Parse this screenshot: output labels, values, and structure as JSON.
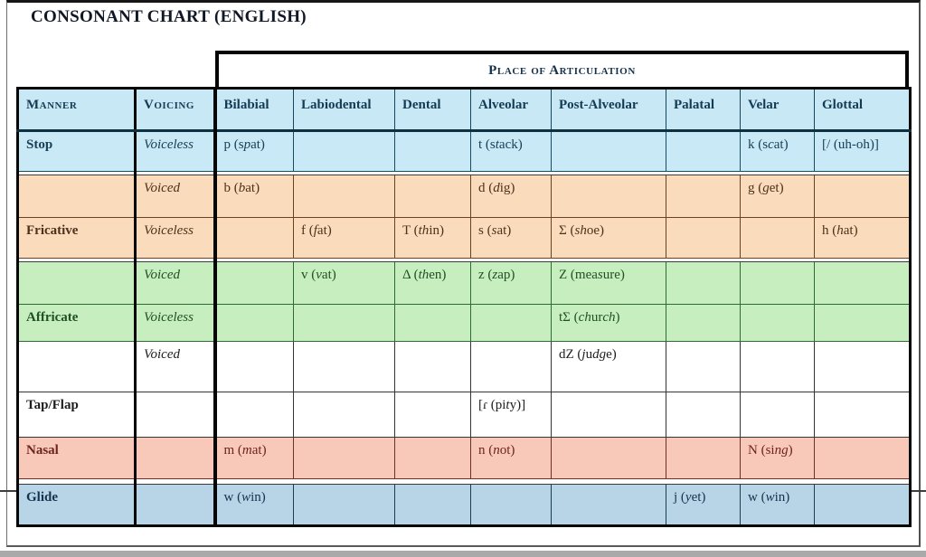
{
  "title": "CONSONANT CHART (ENGLISH)",
  "table": {
    "group_header": "Place of Articulation",
    "columns": [
      {
        "key": "manner",
        "label": "Manner"
      },
      {
        "key": "voicing",
        "label": "Voicing"
      },
      {
        "key": "bilabial",
        "label": "Bilabial"
      },
      {
        "key": "labiodental",
        "label": "Labiodental"
      },
      {
        "key": "dental",
        "label": "Dental"
      },
      {
        "key": "alveolar",
        "label": "Alveolar"
      },
      {
        "key": "postalveolar",
        "label": "Post-Alveolar"
      },
      {
        "key": "palatal",
        "label": "Palatal"
      },
      {
        "key": "velar",
        "label": "Velar"
      },
      {
        "key": "glottal",
        "label": "Glottal"
      }
    ],
    "rows": [
      {
        "manner": "Stop",
        "voicing": "Voiceless",
        "theme": "blue",
        "cells": {
          "bilabial": [
            [
              "p (s"
            ],
            [
              "p",
              1
            ],
            [
              "at)"
            ]
          ],
          "alveolar": [
            [
              "t (s"
            ],
            [
              "t",
              1
            ],
            [
              "ack)"
            ]
          ],
          "velar": [
            [
              "k (s"
            ],
            [
              "c",
              1
            ],
            [
              "at)"
            ]
          ],
          "glottal": [
            [
              "[/ (uh-oh)]"
            ]
          ]
        }
      },
      {
        "manner": "",
        "voicing": "Voiced",
        "theme": "peach",
        "cells": {
          "bilabial": [
            [
              "b ("
            ],
            [
              "b",
              1
            ],
            [
              "at)"
            ]
          ],
          "alveolar": [
            [
              "d ("
            ],
            [
              "d",
              1
            ],
            [
              "ig)"
            ]
          ],
          "velar": [
            [
              "g ("
            ],
            [
              "g",
              1
            ],
            [
              "et)"
            ]
          ]
        }
      },
      {
        "manner": "Fricative",
        "voicing": "Voiceless",
        "theme": "peach",
        "cells": {
          "labiodental": [
            [
              "f ("
            ],
            [
              "f",
              1
            ],
            [
              "at)"
            ]
          ],
          "dental": [
            [
              "T ("
            ],
            [
              "th",
              1
            ],
            [
              "in)"
            ]
          ],
          "alveolar": [
            [
              "s ("
            ],
            [
              "s",
              1
            ],
            [
              "at)"
            ]
          ],
          "postalveolar": [
            [
              "Σ ("
            ],
            [
              "sh",
              1
            ],
            [
              "oe)"
            ]
          ],
          "glottal": [
            [
              "h ("
            ],
            [
              "h",
              1
            ],
            [
              "at)"
            ]
          ]
        }
      },
      {
        "manner": "",
        "voicing": "Voiced",
        "theme": "green",
        "cells": {
          "labiodental": [
            [
              "v ("
            ],
            [
              "v",
              1
            ],
            [
              "at)"
            ]
          ],
          "dental": [
            [
              "Δ ("
            ],
            [
              "th",
              1
            ],
            [
              "en)"
            ]
          ],
          "alveolar": [
            [
              "z ("
            ],
            [
              "z",
              1
            ],
            [
              "ap)"
            ]
          ],
          "postalveolar": [
            [
              "Z (mea"
            ],
            [
              "s",
              1
            ],
            [
              "ure)"
            ]
          ]
        }
      },
      {
        "manner": "Affricate",
        "voicing": "Voiceless",
        "theme": "green",
        "cells": {
          "postalveolar": [
            [
              "tΣ ("
            ],
            [
              "ch",
              1
            ],
            [
              "ur"
            ],
            [
              "ch",
              1
            ],
            [
              ")"
            ]
          ]
        }
      },
      {
        "manner": "",
        "voicing": "Voiced",
        "theme": "plain",
        "cells": {
          "postalveolar": [
            [
              "dZ ("
            ],
            [
              "j",
              1
            ],
            [
              "u"
            ],
            [
              "dg",
              1
            ],
            [
              "e)"
            ]
          ]
        }
      },
      {
        "manner": "Tap/Flap",
        "voicing": "",
        "theme": "plain",
        "cells": {
          "alveolar": [
            [
              "[ɾ (pi"
            ],
            [
              "t",
              1
            ],
            [
              "y)]"
            ]
          ]
        }
      },
      {
        "manner": "Nasal",
        "voicing": "",
        "theme": "salmon",
        "cells": {
          "bilabial": [
            [
              "m ("
            ],
            [
              "m",
              1
            ],
            [
              "at)"
            ]
          ],
          "alveolar": [
            [
              "n ("
            ],
            [
              "n",
              1
            ],
            [
              "ot)"
            ]
          ],
          "velar": [
            [
              "N (si"
            ],
            [
              "ng",
              1
            ],
            [
              ")"
            ]
          ]
        }
      },
      {
        "manner": "Glide",
        "voicing": "",
        "theme": "steel",
        "cells": {
          "bilabial": [
            [
              "w ("
            ],
            [
              "w",
              1
            ],
            [
              "in)"
            ]
          ],
          "palatal": [
            [
              "j ("
            ],
            [
              "y",
              1
            ],
            [
              "et)"
            ]
          ],
          "velar": [
            [
              "w ("
            ],
            [
              "w",
              1
            ],
            [
              "in)"
            ]
          ]
        }
      }
    ]
  },
  "colors": {
    "thick_border": "#060606",
    "header_rule": "#0d3140",
    "page_frame": "#6f6f6f",
    "bottom_shadow": "#a9a9a9",
    "title_ink": "#101826",
    "themes": {
      "header": {
        "bg": "#c9e8f6",
        "ink": "#133b54",
        "line": "#16465a"
      },
      "blue": {
        "bg": "#c9e9f7",
        "ink": "#1a4055",
        "line": "#1a4c60"
      },
      "peach": {
        "bg": "#fadbbc",
        "ink": "#4f301b",
        "line": "#6b4123"
      },
      "green": {
        "bg": "#c7eebf",
        "ink": "#1f5124",
        "line": "#2f6b33"
      },
      "plain": {
        "bg": "#ffffff",
        "ink": "#1d1d1d",
        "line": "#343434"
      },
      "salmon": {
        "bg": "#f8c9b9",
        "ink": "#6d241d",
        "line": "#6d3027"
      },
      "steel": {
        "bg": "#b8d5e8",
        "ink": "#14334e",
        "line": "#1a4050"
      }
    }
  }
}
